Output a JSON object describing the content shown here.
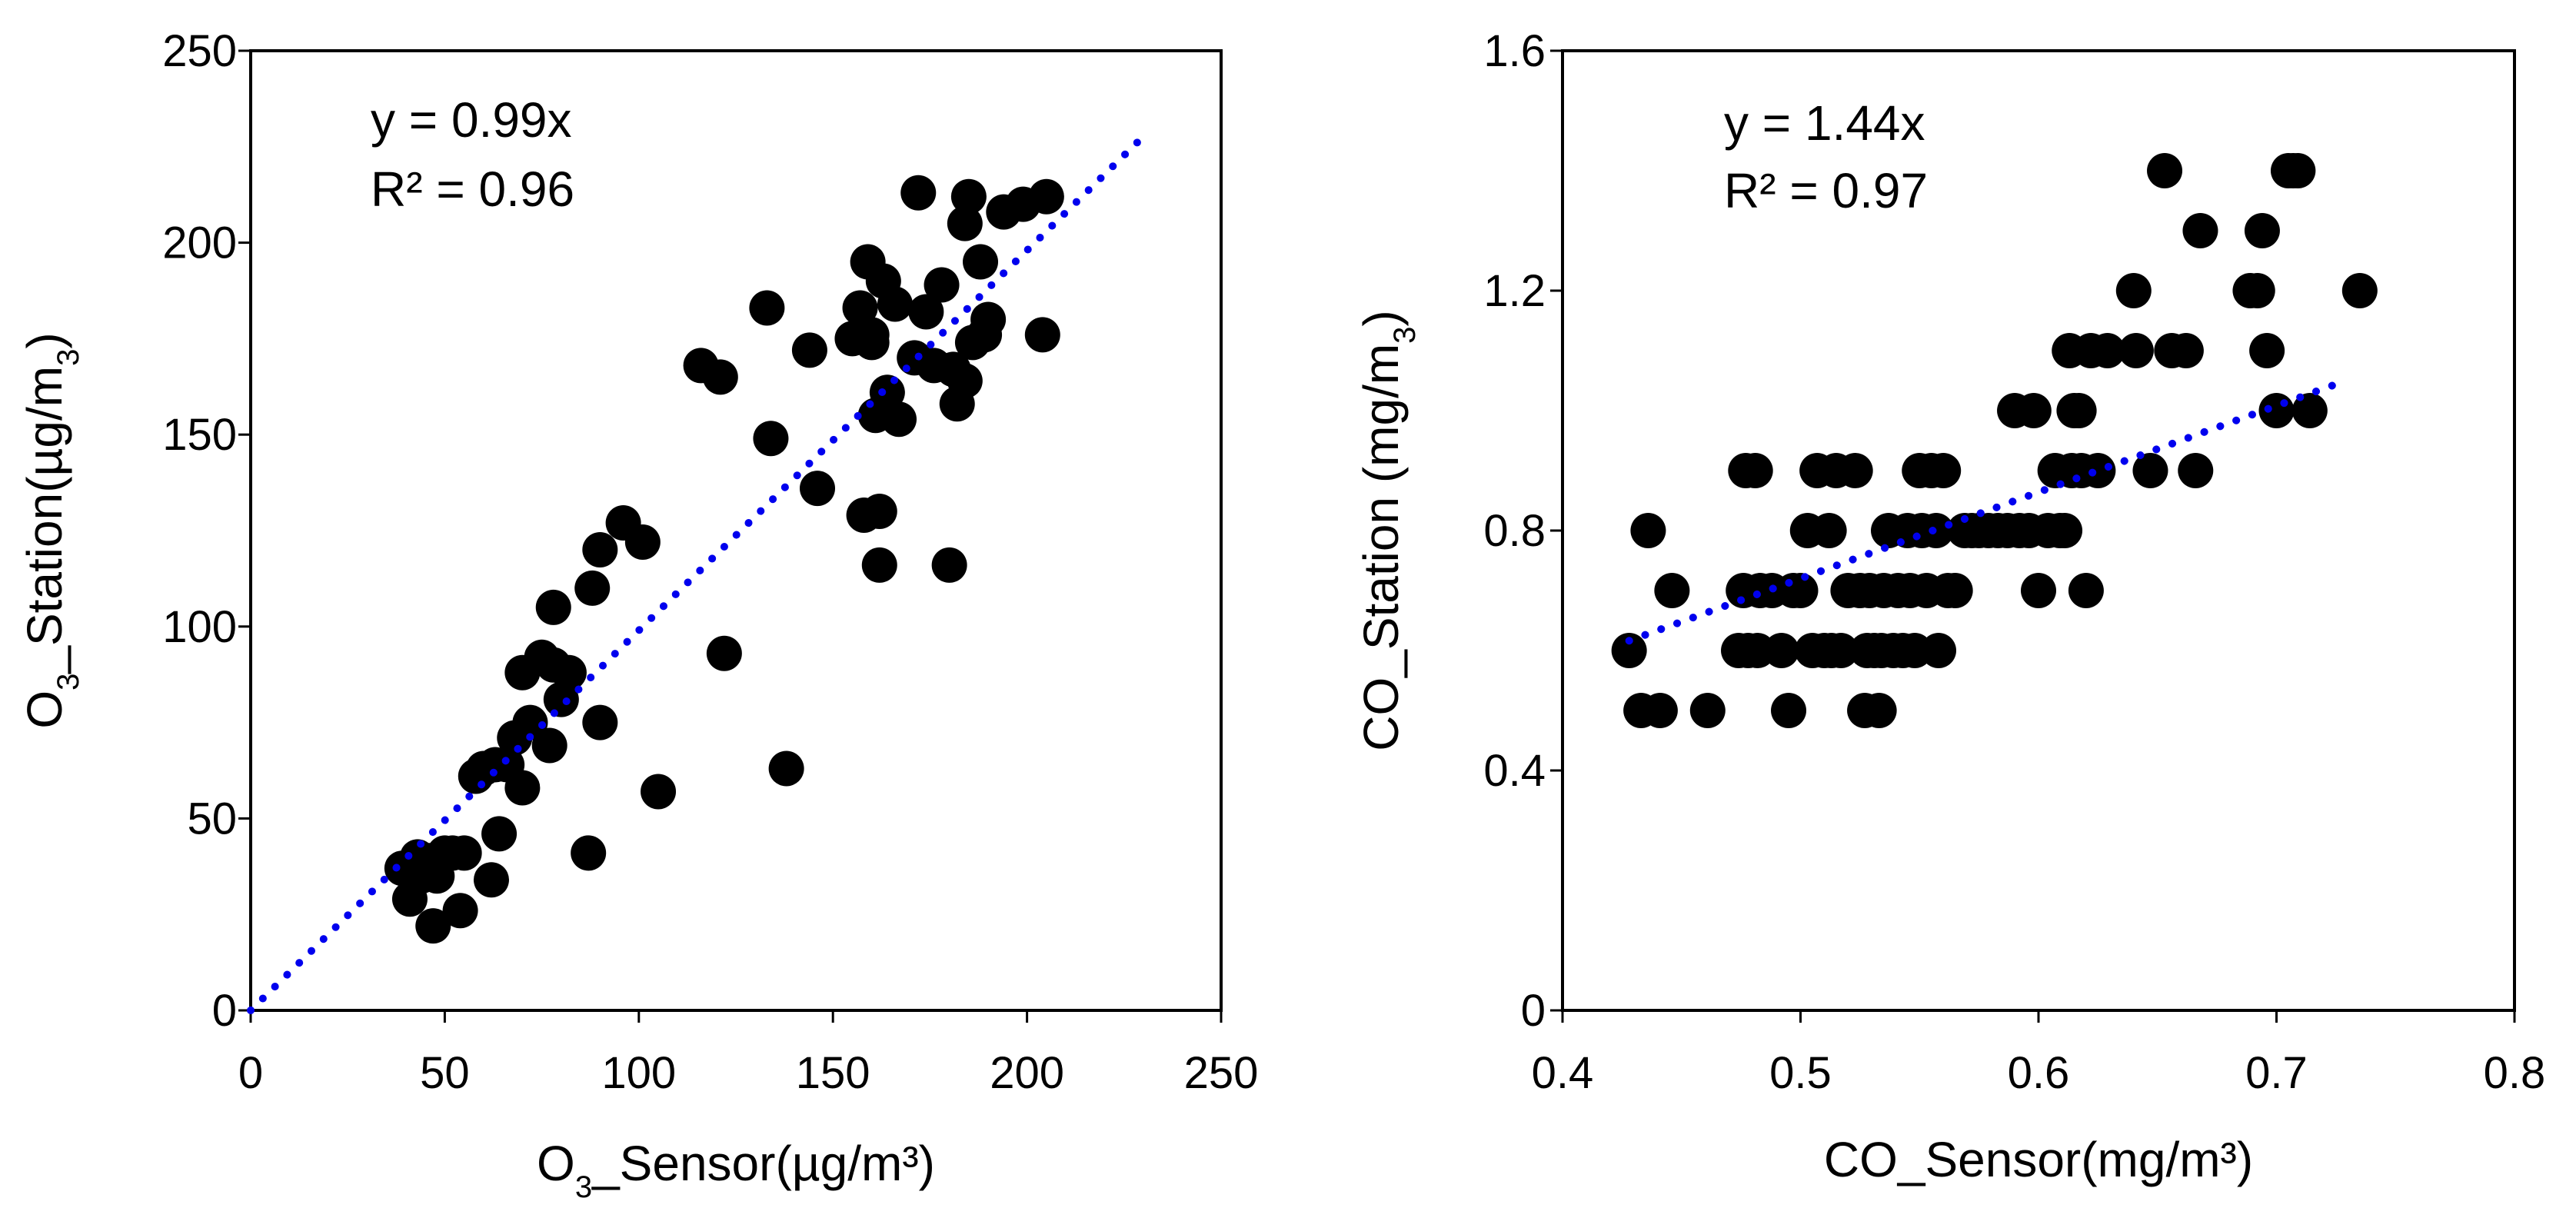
{
  "colors": {
    "point": "#000000",
    "trendline": "#0000ee",
    "frame": "#000000",
    "background": "#ffffff"
  },
  "chart_data": [
    {
      "type": "scatter",
      "title": "",
      "xlabel_parts": [
        "O",
        "3",
        "_Sensor(µg/m³)"
      ],
      "ylabel_parts": [
        "O",
        "3",
        "_Station(µg/m",
        "3",
        ")"
      ],
      "xlim": [
        0,
        250
      ],
      "ylim": [
        0,
        250
      ],
      "xticks": [
        0,
        50,
        100,
        150,
        200,
        250
      ],
      "yticks": [
        0,
        50,
        100,
        150,
        200,
        250
      ],
      "xtick_labels": [
        "0",
        "50",
        "100",
        "150",
        "200",
        "250"
      ],
      "ytick_labels": [
        "0",
        "50",
        "100",
        "150",
        "200",
        "250"
      ],
      "annotations": [
        "y = 0.99x",
        "R² = 0.96"
      ],
      "trendline": {
        "slope": 0.99,
        "intercept": 0,
        "x_range": [
          0,
          230
        ]
      },
      "series": [
        {
          "name": "O3",
          "x": [
            39,
            41,
            43,
            44,
            46,
            47,
            48,
            50,
            52,
            54,
            55,
            58,
            60,
            62,
            63,
            64,
            66,
            68,
            70,
            70,
            72,
            75,
            77,
            78,
            78,
            80,
            82,
            87,
            88,
            90,
            90,
            96,
            101,
            105,
            116,
            121,
            122,
            133,
            134,
            138,
            144,
            146,
            155,
            157,
            158,
            159,
            160,
            160,
            161,
            162,
            162,
            163,
            164,
            166,
            167,
            171,
            172,
            174,
            176,
            178,
            180,
            181,
            182,
            184,
            184,
            185,
            186,
            188,
            189,
            190,
            194,
            199,
            204,
            205
          ],
          "y": [
            37,
            29,
            40,
            35,
            39,
            22,
            35,
            41,
            41,
            26,
            41,
            61,
            63,
            34,
            64,
            46,
            64,
            71,
            88,
            58,
            75,
            92,
            69,
            105,
            90,
            81,
            88,
            41,
            110,
            120,
            75,
            127,
            122,
            57,
            168,
            165,
            93,
            183,
            149,
            63,
            172,
            136,
            175,
            183,
            129,
            195,
            176,
            174,
            155,
            130,
            116,
            190,
            161,
            184,
            154,
            170,
            213,
            182,
            168,
            189,
            116,
            167,
            158,
            164,
            205,
            212,
            174,
            195,
            176,
            180,
            208,
            210,
            176,
            212
          ]
        }
      ]
    },
    {
      "type": "scatter",
      "title": "",
      "xlabel_parts": [
        "CO_Sensor(mg/m³)"
      ],
      "ylabel_parts": [
        "CO_Station (mg/m",
        "3",
        ")"
      ],
      "xlim": [
        0.4,
        0.8
      ],
      "ylim": [
        0,
        1.6
      ],
      "xticks": [
        0.4,
        0.5,
        0.6,
        0.7,
        0.8
      ],
      "yticks": [
        0,
        0.4,
        0.8,
        1.2,
        1.6
      ],
      "xtick_labels": [
        "0.4",
        "0.5",
        "0.6",
        "0.7",
        "0.8"
      ],
      "ytick_labels": [
        "0",
        "0.4",
        "0.8",
        "1.2",
        "1.6"
      ],
      "annotations": [
        "y = 1.44x",
        "R² = 0.97"
      ],
      "trendline": {
        "slope": 1.44,
        "intercept": 0,
        "x_range": [
          0.428,
          0.727
        ]
      },
      "series": [
        {
          "name": "CO",
          "x": [
            0.428,
            0.433,
            0.436,
            0.441,
            0.446,
            0.461,
            0.474,
            0.476,
            0.477,
            0.478,
            0.481,
            0.482,
            0.483,
            0.488,
            0.492,
            0.495,
            0.497,
            0.5,
            0.503,
            0.505,
            0.507,
            0.51,
            0.512,
            0.513,
            0.515,
            0.517,
            0.52,
            0.523,
            0.525,
            0.527,
            0.528,
            0.529,
            0.531,
            0.533,
            0.534,
            0.535,
            0.537,
            0.539,
            0.541,
            0.543,
            0.545,
            0.546,
            0.548,
            0.55,
            0.551,
            0.553,
            0.555,
            0.557,
            0.558,
            0.56,
            0.562,
            0.565,
            0.569,
            0.572,
            0.575,
            0.579,
            0.583,
            0.587,
            0.59,
            0.592,
            0.596,
            0.598,
            0.6,
            0.604,
            0.607,
            0.609,
            0.611,
            0.613,
            0.614,
            0.615,
            0.617,
            0.618,
            0.62,
            0.622,
            0.625,
            0.629,
            0.64,
            0.641,
            0.647,
            0.653,
            0.656,
            0.662,
            0.666,
            0.668,
            0.689,
            0.692,
            0.694,
            0.696,
            0.7,
            0.705,
            0.707,
            0.709,
            0.714,
            0.735
          ],
          "y": [
            0.6,
            0.5,
            0.8,
            0.5,
            0.7,
            0.5,
            0.6,
            0.7,
            0.9,
            0.6,
            0.9,
            0.6,
            0.7,
            0.7,
            0.6,
            0.5,
            0.7,
            0.7,
            0.8,
            0.6,
            0.9,
            0.6,
            0.8,
            0.6,
            0.9,
            0.6,
            0.7,
            0.9,
            0.7,
            0.5,
            0.6,
            0.7,
            0.6,
            0.5,
            0.6,
            0.7,
            0.8,
            0.6,
            0.7,
            0.6,
            0.8,
            0.7,
            0.6,
            0.9,
            0.8,
            0.7,
            0.9,
            0.8,
            0.6,
            0.9,
            0.7,
            0.7,
            0.8,
            0.8,
            0.8,
            0.8,
            0.8,
            0.8,
            1.0,
            0.8,
            0.8,
            1.0,
            0.7,
            0.8,
            0.9,
            0.8,
            0.8,
            1.1,
            0.9,
            1.0,
            1.0,
            0.9,
            0.7,
            1.1,
            0.9,
            1.1,
            1.2,
            1.1,
            0.9,
            1.4,
            1.1,
            1.1,
            0.9,
            1.3,
            1.2,
            1.2,
            1.3,
            1.1,
            1.0,
            1.4,
            1.4,
            1.4,
            1.0,
            1.2
          ]
        }
      ]
    }
  ]
}
